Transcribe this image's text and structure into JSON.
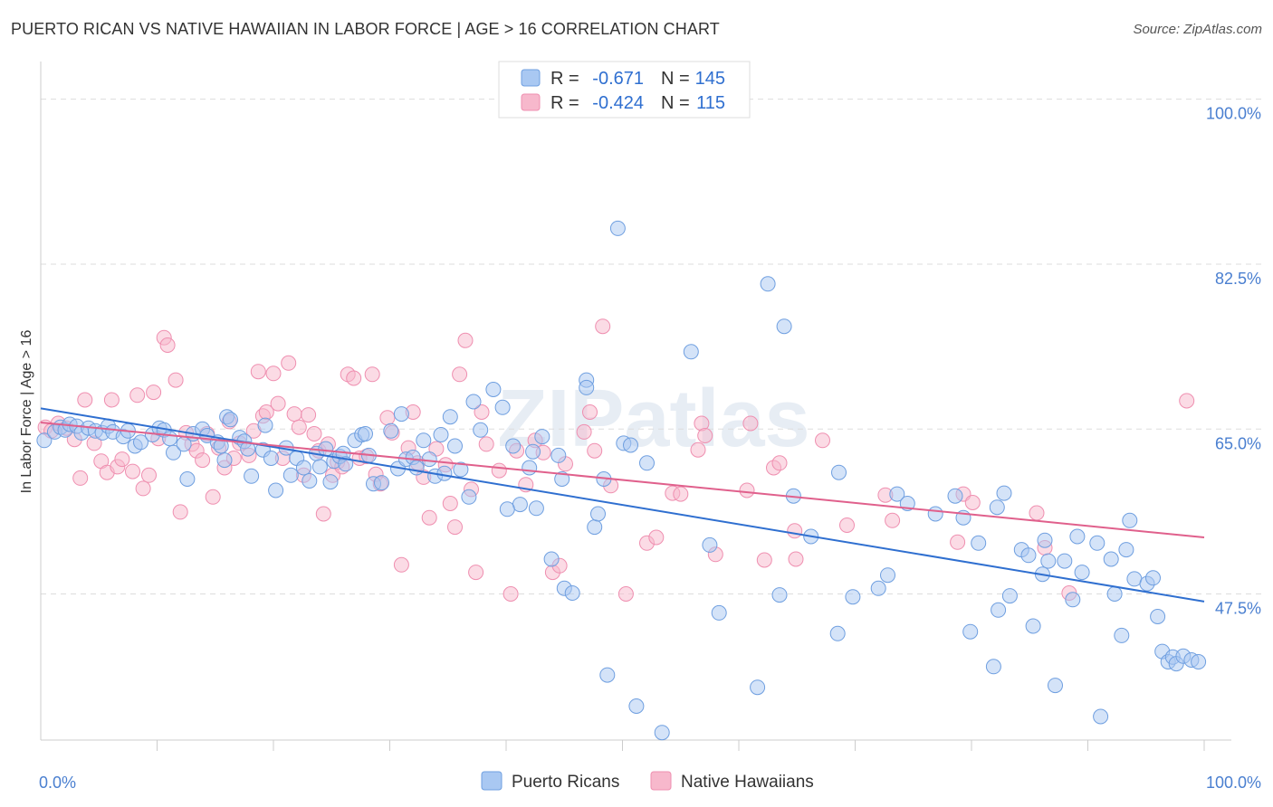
{
  "title": "PUERTO RICAN VS NATIVE HAWAIIAN IN LABOR FORCE | AGE > 16 CORRELATION CHART",
  "source": "Source: ZipAtlas.com",
  "watermark": "ZIPatlas",
  "legend": {
    "rows": [
      {
        "r_label": "R =",
        "r_value": "-0.671",
        "n_label": "N =",
        "n_value": "145",
        "color": "#a9c8f2"
      },
      {
        "r_label": "R =",
        "r_value": "-0.424",
        "n_label": "N =",
        "n_value": "115",
        "color": "#f7b8cc"
      }
    ]
  },
  "chart_data": {
    "type": "scatter",
    "title": "PUERTO RICAN VS NATIVE HAWAIIAN IN LABOR FORCE | AGE > 16 CORRELATION CHART",
    "xlabel": "",
    "ylabel": "In Labor Force | Age > 16",
    "xlim": [
      0,
      100
    ],
    "ylim": [
      32,
      104
    ],
    "x_tick_labels": [
      "0.0%",
      "100.0%"
    ],
    "y_ticks": [
      47.5,
      65.0,
      82.5,
      100.0
    ],
    "y_tick_labels": [
      "47.5%",
      "65.0%",
      "82.5%",
      "100.0%"
    ],
    "grid": "horizontal-dashed",
    "series": [
      {
        "name": "Puerto Ricans",
        "color": "#6f9fe0",
        "fill": "#a9c8f2",
        "line_color": "#2f6fd0",
        "trend": {
          "x": [
            0,
            100
          ],
          "y": [
            67.2,
            46.7
          ]
        },
        "points": [
          [
            0.3,
            63.8
          ],
          [
            1.2,
            64.7
          ],
          [
            1.7,
            65.2
          ],
          [
            2.1,
            64.9
          ],
          [
            2.5,
            65.5
          ],
          [
            3.1,
            65.3
          ],
          [
            3.5,
            64.6
          ],
          [
            4.1,
            65.1
          ],
          [
            4.7,
            64.8
          ],
          [
            5.3,
            64.6
          ],
          [
            5.8,
            65.3
          ],
          [
            6.2,
            64.7
          ],
          [
            7.1,
            64.2
          ],
          [
            7.5,
            64.8
          ],
          [
            8.1,
            63.2
          ],
          [
            8.6,
            63.6
          ],
          [
            9.6,
            64.4
          ],
          [
            10.2,
            65.1
          ],
          [
            10.6,
            64.9
          ],
          [
            11.1,
            64.0
          ],
          [
            11.4,
            62.5
          ],
          [
            12.3,
            63.4
          ],
          [
            12.6,
            59.7
          ],
          [
            13.1,
            64.5
          ],
          [
            13.9,
            65.0
          ],
          [
            14.3,
            64.3
          ],
          [
            15.2,
            63.6
          ],
          [
            15.5,
            63.2
          ],
          [
            15.8,
            61.7
          ],
          [
            16.0,
            66.3
          ],
          [
            16.3,
            66.0
          ],
          [
            17.1,
            64.1
          ],
          [
            17.5,
            63.7
          ],
          [
            17.8,
            62.9
          ],
          [
            18.1,
            60.0
          ],
          [
            19.1,
            62.8
          ],
          [
            19.3,
            65.4
          ],
          [
            19.8,
            61.9
          ],
          [
            20.2,
            58.5
          ],
          [
            21.1,
            63.0
          ],
          [
            21.5,
            60.1
          ],
          [
            22.0,
            61.9
          ],
          [
            22.6,
            60.9
          ],
          [
            23.1,
            59.5
          ],
          [
            23.7,
            62.4
          ],
          [
            24.0,
            61.0
          ],
          [
            24.5,
            62.9
          ],
          [
            24.9,
            59.4
          ],
          [
            25.2,
            61.6
          ],
          [
            25.7,
            62.1
          ],
          [
            26.0,
            62.4
          ],
          [
            26.2,
            61.3
          ],
          [
            27.0,
            63.8
          ],
          [
            27.6,
            64.4
          ],
          [
            27.9,
            64.5
          ],
          [
            28.2,
            62.2
          ],
          [
            28.6,
            59.2
          ],
          [
            29.3,
            59.3
          ],
          [
            30.1,
            64.8
          ],
          [
            30.7,
            60.8
          ],
          [
            31.0,
            66.6
          ],
          [
            31.4,
            61.8
          ],
          [
            32.0,
            62.0
          ],
          [
            32.3,
            60.9
          ],
          [
            32.9,
            63.8
          ],
          [
            33.4,
            61.8
          ],
          [
            33.9,
            60.0
          ],
          [
            34.4,
            64.4
          ],
          [
            34.7,
            60.3
          ],
          [
            35.2,
            66.3
          ],
          [
            35.6,
            63.2
          ],
          [
            36.1,
            60.7
          ],
          [
            37.2,
            67.9
          ],
          [
            36.8,
            57.8
          ],
          [
            37.8,
            64.9
          ],
          [
            38.9,
            69.2
          ],
          [
            39.7,
            67.3
          ],
          [
            40.6,
            63.2
          ],
          [
            41.2,
            57.0
          ],
          [
            40.1,
            56.5
          ],
          [
            42.0,
            60.9
          ],
          [
            42.3,
            62.6
          ],
          [
            42.6,
            56.6
          ],
          [
            43.1,
            64.2
          ],
          [
            43.9,
            51.2
          ],
          [
            44.5,
            62.2
          ],
          [
            44.8,
            59.7
          ],
          [
            45.0,
            48.1
          ],
          [
            45.7,
            47.6
          ],
          [
            46.9,
            70.2
          ],
          [
            46.9,
            69.4
          ],
          [
            47.6,
            54.6
          ],
          [
            47.9,
            56.0
          ],
          [
            48.4,
            59.7
          ],
          [
            48.7,
            38.9
          ],
          [
            49.6,
            86.3
          ],
          [
            50.1,
            63.5
          ],
          [
            50.7,
            63.3
          ],
          [
            51.2,
            35.6
          ],
          [
            52.1,
            61.4
          ],
          [
            53.4,
            32.8
          ],
          [
            55.9,
            73.2
          ],
          [
            57.5,
            52.7
          ],
          [
            58.3,
            45.5
          ],
          [
            61.6,
            37.6
          ],
          [
            62.5,
            80.4
          ],
          [
            63.5,
            47.4
          ],
          [
            63.9,
            75.9
          ],
          [
            64.7,
            57.9
          ],
          [
            66.2,
            53.6
          ],
          [
            68.5,
            43.3
          ],
          [
            68.6,
            60.4
          ],
          [
            69.8,
            47.2
          ],
          [
            72.0,
            48.1
          ],
          [
            72.8,
            49.5
          ],
          [
            73.6,
            58.1
          ],
          [
            74.5,
            57.1
          ],
          [
            76.9,
            56.0
          ],
          [
            78.6,
            57.9
          ],
          [
            79.3,
            55.6
          ],
          [
            79.9,
            43.5
          ],
          [
            80.6,
            52.9
          ],
          [
            81.9,
            39.8
          ],
          [
            82.2,
            56.7
          ],
          [
            82.3,
            45.8
          ],
          [
            82.8,
            58.2
          ],
          [
            83.3,
            47.3
          ],
          [
            84.3,
            52.2
          ],
          [
            84.9,
            51.6
          ],
          [
            85.3,
            44.1
          ],
          [
            86.1,
            49.6
          ],
          [
            86.6,
            51.0
          ],
          [
            86.3,
            53.2
          ],
          [
            87.2,
            37.8
          ],
          [
            88.0,
            51.0
          ],
          [
            88.7,
            46.9
          ],
          [
            89.1,
            53.6
          ],
          [
            89.5,
            49.8
          ],
          [
            90.8,
            52.9
          ],
          [
            91.1,
            34.5
          ],
          [
            92.0,
            51.2
          ],
          [
            92.3,
            47.5
          ],
          [
            92.9,
            43.1
          ],
          [
            93.3,
            52.2
          ],
          [
            93.6,
            55.3
          ],
          [
            94.0,
            49.1
          ],
          [
            95.1,
            48.6
          ],
          [
            95.6,
            49.2
          ],
          [
            96.0,
            45.1
          ],
          [
            96.4,
            41.4
          ],
          [
            96.9,
            40.3
          ],
          [
            97.3,
            40.8
          ],
          [
            97.6,
            40.1
          ],
          [
            98.2,
            40.9
          ],
          [
            98.9,
            40.5
          ],
          [
            99.5,
            40.3
          ]
        ]
      },
      {
        "name": "Native Hawaiians",
        "color": "#ef8fb0",
        "fill": "#f7b8cc",
        "line_color": "#e0608c",
        "trend": {
          "x": [
            0,
            100
          ],
          "y": [
            65.7,
            53.5
          ]
        },
        "points": [
          [
            0.4,
            65.2
          ],
          [
            0.9,
            64.8
          ],
          [
            1.5,
            65.6
          ],
          [
            2.2,
            65.1
          ],
          [
            2.9,
            63.9
          ],
          [
            3.4,
            59.8
          ],
          [
            3.8,
            68.1
          ],
          [
            4.6,
            63.5
          ],
          [
            5.2,
            61.6
          ],
          [
            5.7,
            60.4
          ],
          [
            6.1,
            68.1
          ],
          [
            6.6,
            61.0
          ],
          [
            7.0,
            61.8
          ],
          [
            7.9,
            60.5
          ],
          [
            8.3,
            68.6
          ],
          [
            8.8,
            58.7
          ],
          [
            9.3,
            60.1
          ],
          [
            9.7,
            68.9
          ],
          [
            10.1,
            64.0
          ],
          [
            10.6,
            74.7
          ],
          [
            10.9,
            73.9
          ],
          [
            11.6,
            70.2
          ],
          [
            12.0,
            56.2
          ],
          [
            12.5,
            64.6
          ],
          [
            13.0,
            63.4
          ],
          [
            13.4,
            62.7
          ],
          [
            13.9,
            61.7
          ],
          [
            14.3,
            64.5
          ],
          [
            14.8,
            57.8
          ],
          [
            15.3,
            63.0
          ],
          [
            15.8,
            60.9
          ],
          [
            16.2,
            65.8
          ],
          [
            16.6,
            61.9
          ],
          [
            17.1,
            63.5
          ],
          [
            17.9,
            62.2
          ],
          [
            18.3,
            64.8
          ],
          [
            18.7,
            71.1
          ],
          [
            19.1,
            66.4
          ],
          [
            19.4,
            66.8
          ],
          [
            20.0,
            70.9
          ],
          [
            20.4,
            67.7
          ],
          [
            20.8,
            61.9
          ],
          [
            21.3,
            72.0
          ],
          [
            21.8,
            66.6
          ],
          [
            22.2,
            65.2
          ],
          [
            22.6,
            60.1
          ],
          [
            23.0,
            66.5
          ],
          [
            23.5,
            64.5
          ],
          [
            23.9,
            62.7
          ],
          [
            24.3,
            56.0
          ],
          [
            24.7,
            63.4
          ],
          [
            25.1,
            60.1
          ],
          [
            25.5,
            61.5
          ],
          [
            25.9,
            61.0
          ],
          [
            26.4,
            70.8
          ],
          [
            26.9,
            70.4
          ],
          [
            27.4,
            61.9
          ],
          [
            28.0,
            62.1
          ],
          [
            28.5,
            70.8
          ],
          [
            28.8,
            60.2
          ],
          [
            29.2,
            59.2
          ],
          [
            29.8,
            66.2
          ],
          [
            30.2,
            64.6
          ],
          [
            31.0,
            50.6
          ],
          [
            31.6,
            63.0
          ],
          [
            32.0,
            66.8
          ],
          [
            32.4,
            61.4
          ],
          [
            32.9,
            59.9
          ],
          [
            33.4,
            55.6
          ],
          [
            34.0,
            62.9
          ],
          [
            34.8,
            61.2
          ],
          [
            35.2,
            57.1
          ],
          [
            35.6,
            54.6
          ],
          [
            36.0,
            70.8
          ],
          [
            36.5,
            74.4
          ],
          [
            37.0,
            58.6
          ],
          [
            37.4,
            49.8
          ],
          [
            37.9,
            66.8
          ],
          [
            38.3,
            63.4
          ],
          [
            39.4,
            60.6
          ],
          [
            40.4,
            47.5
          ],
          [
            40.9,
            62.7
          ],
          [
            41.7,
            59.1
          ],
          [
            42.5,
            63.8
          ],
          [
            43.2,
            62.5
          ],
          [
            44.0,
            49.8
          ],
          [
            44.6,
            50.5
          ],
          [
            45.1,
            61.3
          ],
          [
            46.7,
            64.7
          ],
          [
            47.2,
            66.8
          ],
          [
            47.6,
            62.7
          ],
          [
            48.3,
            75.9
          ],
          [
            49.0,
            59.0
          ],
          [
            50.3,
            47.5
          ],
          [
            52.1,
            52.9
          ],
          [
            52.9,
            53.5
          ],
          [
            54.3,
            58.2
          ],
          [
            55.0,
            58.1
          ],
          [
            56.5,
            62.8
          ],
          [
            56.8,
            65.6
          ],
          [
            57.1,
            64.3
          ],
          [
            58.0,
            51.7
          ],
          [
            60.7,
            58.5
          ],
          [
            61.0,
            65.6
          ],
          [
            62.2,
            51.1
          ],
          [
            63.0,
            60.9
          ],
          [
            63.5,
            61.4
          ],
          [
            64.8,
            54.2
          ],
          [
            64.9,
            51.2
          ],
          [
            67.2,
            63.8
          ],
          [
            69.3,
            54.8
          ],
          [
            72.6,
            58.0
          ],
          [
            73.2,
            55.3
          ],
          [
            78.8,
            53.0
          ],
          [
            79.3,
            58.1
          ],
          [
            80.1,
            57.2
          ],
          [
            85.6,
            56.1
          ],
          [
            86.3,
            52.4
          ],
          [
            88.4,
            47.6
          ],
          [
            98.5,
            68.0
          ]
        ]
      }
    ]
  },
  "bottom_legend": [
    {
      "label": "Puerto Ricans",
      "color": "#a9c8f2"
    },
    {
      "label": "Native Hawaiians",
      "color": "#f7b8cc"
    }
  ]
}
